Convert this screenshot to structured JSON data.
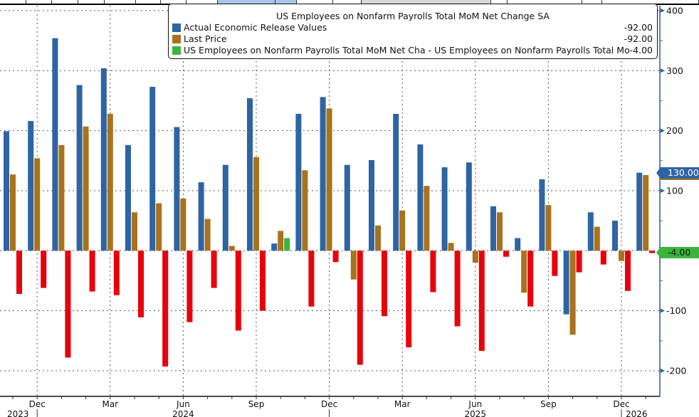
{
  "chart_data": {
    "type": "bar",
    "title": "US Employees on Nonfarm Payrolls Total MoM Net Change SA",
    "xlabel": "",
    "ylabel": "",
    "ylim": [
      -240,
      410
    ],
    "yticks": [
      400,
      300,
      200,
      100,
      0,
      -100,
      -200
    ],
    "ytick_labels": [
      "400",
      "300",
      "200",
      "100",
      "",
      "-100",
      "-200"
    ],
    "grid": true,
    "legend_position": "top-right",
    "categories": [
      "Nov 2023",
      "Dec 2023",
      "Jan 2024",
      "Feb 2024",
      "Mar 2024",
      "Apr 2024",
      "May 2024",
      "Jun 2024",
      "Jul 2024",
      "Aug 2024",
      "Sep 2024",
      "Oct 2024",
      "Nov 2024",
      "Dec 2024",
      "Jan 2025",
      "Feb 2025",
      "Mar 2025",
      "Apr 2025",
      "May 2025",
      "Jun 2025",
      "Jul 2025",
      "Aug 2025",
      "Sep 2025",
      "Oct 2025",
      "Nov 2025",
      "Dec 2025",
      "Jan 2026"
    ],
    "x_month_labels": [
      {
        "index": 1,
        "label": "Dec"
      },
      {
        "index": 4,
        "label": "Mar"
      },
      {
        "index": 7,
        "label": "Jun"
      },
      {
        "index": 10,
        "label": "Sep"
      },
      {
        "index": 13,
        "label": "Dec"
      },
      {
        "index": 16,
        "label": "Mar"
      },
      {
        "index": 19,
        "label": "Jun"
      },
      {
        "index": 22,
        "label": "Sep"
      },
      {
        "index": 25,
        "label": "Dec"
      }
    ],
    "x_year_labels": [
      {
        "index": 0,
        "label": "2023"
      },
      {
        "index": 7,
        "label": "2024"
      },
      {
        "index": 19,
        "label": "2025"
      },
      {
        "index": 26,
        "label": "2026"
      }
    ],
    "year_separators": [
      1,
      13,
      25
    ],
    "series": [
      {
        "name": "Actual Economic Release Values",
        "color": "#2d64a4",
        "values": [
          199,
          216,
          354,
          276,
          304,
          176,
          273,
          206,
          114,
          143,
          254,
          12,
          228,
          256,
          143,
          151,
          228,
          177,
          139,
          147,
          74,
          21,
          119,
          -106,
          64,
          50,
          130
        ]
      },
      {
        "name": "Last Price",
        "color": "#a8731c",
        "values": [
          127,
          154,
          176,
          207,
          228,
          64,
          79,
          87,
          53,
          8,
          156,
          33,
          134,
          237,
          -48,
          42,
          67,
          108,
          13,
          -20,
          64,
          -70,
          76,
          -140,
          40,
          -17,
          126
        ]
      },
      {
        "name": "US Employees on Nonfarm Payrolls Total MoM Net Cha - US Employees on Nonfarm Payrolls Total Mo",
        "color": "#e8000b",
        "values": [
          -72,
          -62,
          -178,
          -68,
          -74,
          -111,
          -193,
          -119,
          -62,
          -133,
          -100,
          21,
          -93,
          -19,
          -190,
          -109,
          -161,
          -69,
          -126,
          -167,
          -10,
          -93,
          -42,
          -36,
          -23,
          -67,
          -4
        ]
      }
    ],
    "highlight_color_positive_diff": "#3cb43c",
    "last_value_tags": [
      {
        "label": "130.00",
        "color": "#2d64a4",
        "value": 130
      },
      {
        "label": "-4.00",
        "color": "#3cb43c",
        "value": -4
      }
    ]
  },
  "legend": {
    "title": "US Employees on Nonfarm Payrolls Total MoM Net Change SA",
    "items": [
      {
        "label": "Actual Economic Release Values",
        "value": "-92.00",
        "color": "#2d64a4"
      },
      {
        "label": "Last Price",
        "value": "-92.00",
        "color": "#a8731c"
      },
      {
        "label": "US Employees on Nonfarm Payrolls Total MoM Net Cha - US Employees on Nonfarm Payrolls Total Mo",
        "value": "-4.00",
        "color": "#3cb43c"
      }
    ]
  },
  "tags": {
    "blue": "130.00",
    "green": "-4.00"
  }
}
